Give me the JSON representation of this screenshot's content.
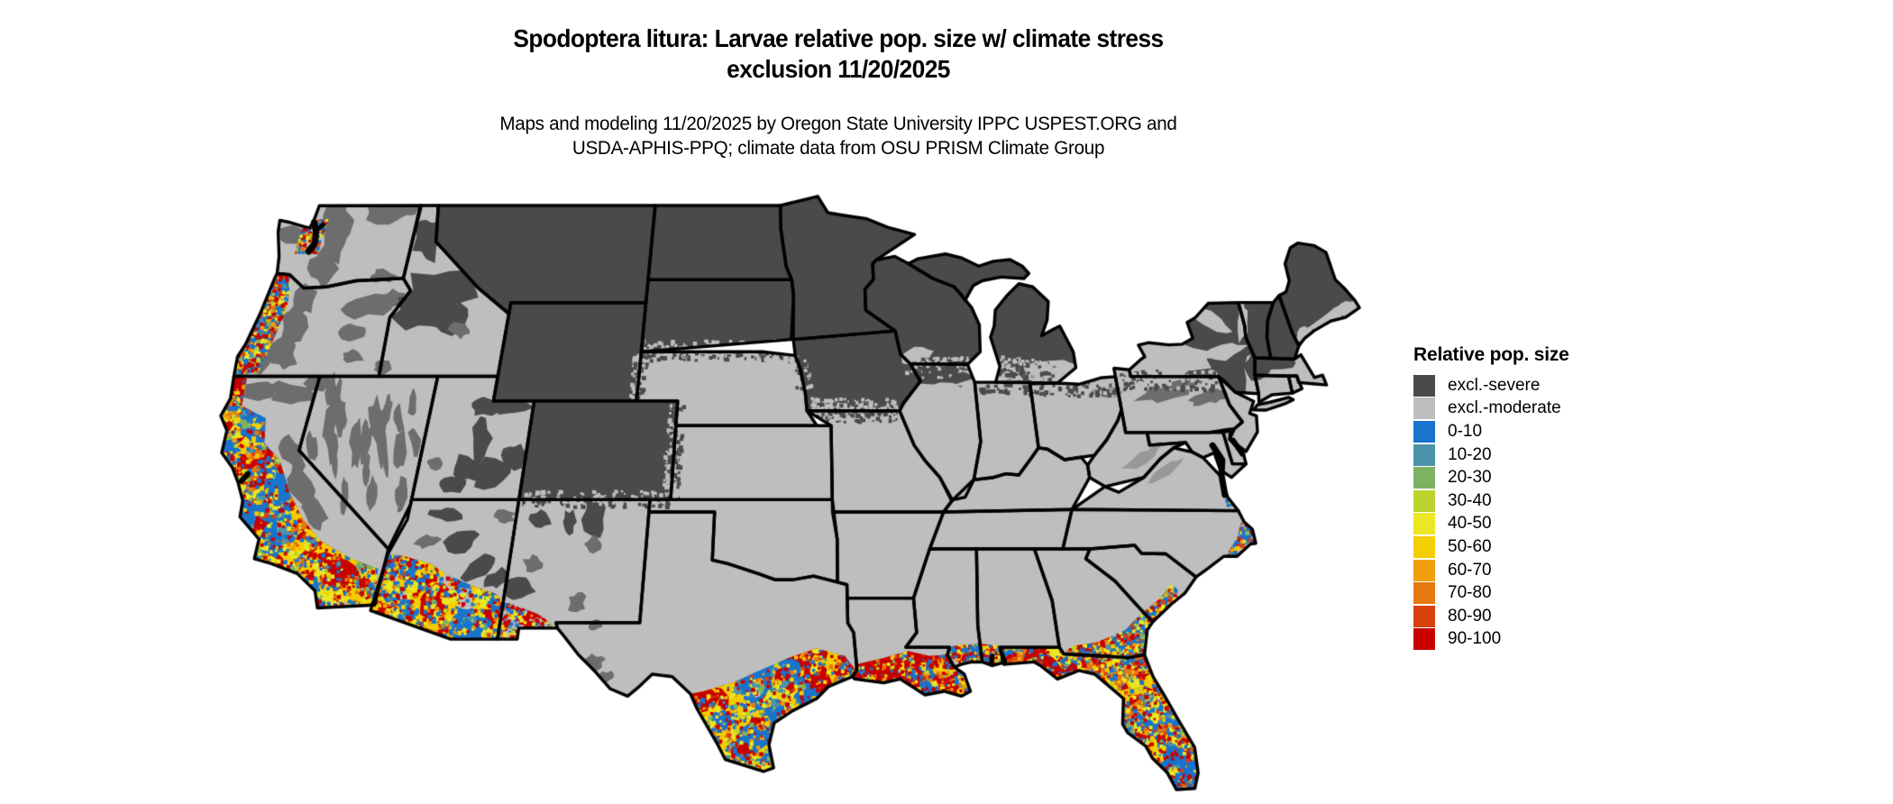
{
  "figure": {
    "title_line1": "Spodoptera litura: Larvae relative pop. size w/ climate stress",
    "title_line2": "exclusion 11/20/2025",
    "subtitle_line1": "Maps and modeling 11/20/2025 by Oregon State University IPPC USPEST.ORG and",
    "subtitle_line2": "USDA-APHIS-PPQ; climate data from OSU PRISM Climate Group"
  },
  "legend": {
    "title": "Relative pop. size",
    "entries": [
      {
        "label": "excl.-severe",
        "color": "#4A4A4A"
      },
      {
        "label": "excl.-moderate",
        "color": "#BEBEBE"
      },
      {
        "label": "0-10",
        "color": "#1874CD"
      },
      {
        "label": "10-20",
        "color": "#4D93A9"
      },
      {
        "label": "20-30",
        "color": "#7CB264"
      },
      {
        "label": "30-40",
        "color": "#BCD32F"
      },
      {
        "label": "40-50",
        "color": "#EBE723"
      },
      {
        "label": "50-60",
        "color": "#F5CE00"
      },
      {
        "label": "60-70",
        "color": "#F0A00C"
      },
      {
        "label": "70-80",
        "color": "#E67910"
      },
      {
        "label": "80-90",
        "color": "#D8400E"
      },
      {
        "label": "90-100",
        "color": "#C80000"
      }
    ]
  },
  "map": {
    "state_border_color": "#000000",
    "water_color": "#ffffff",
    "mountain_patch_color": "#6d6d6d"
  }
}
